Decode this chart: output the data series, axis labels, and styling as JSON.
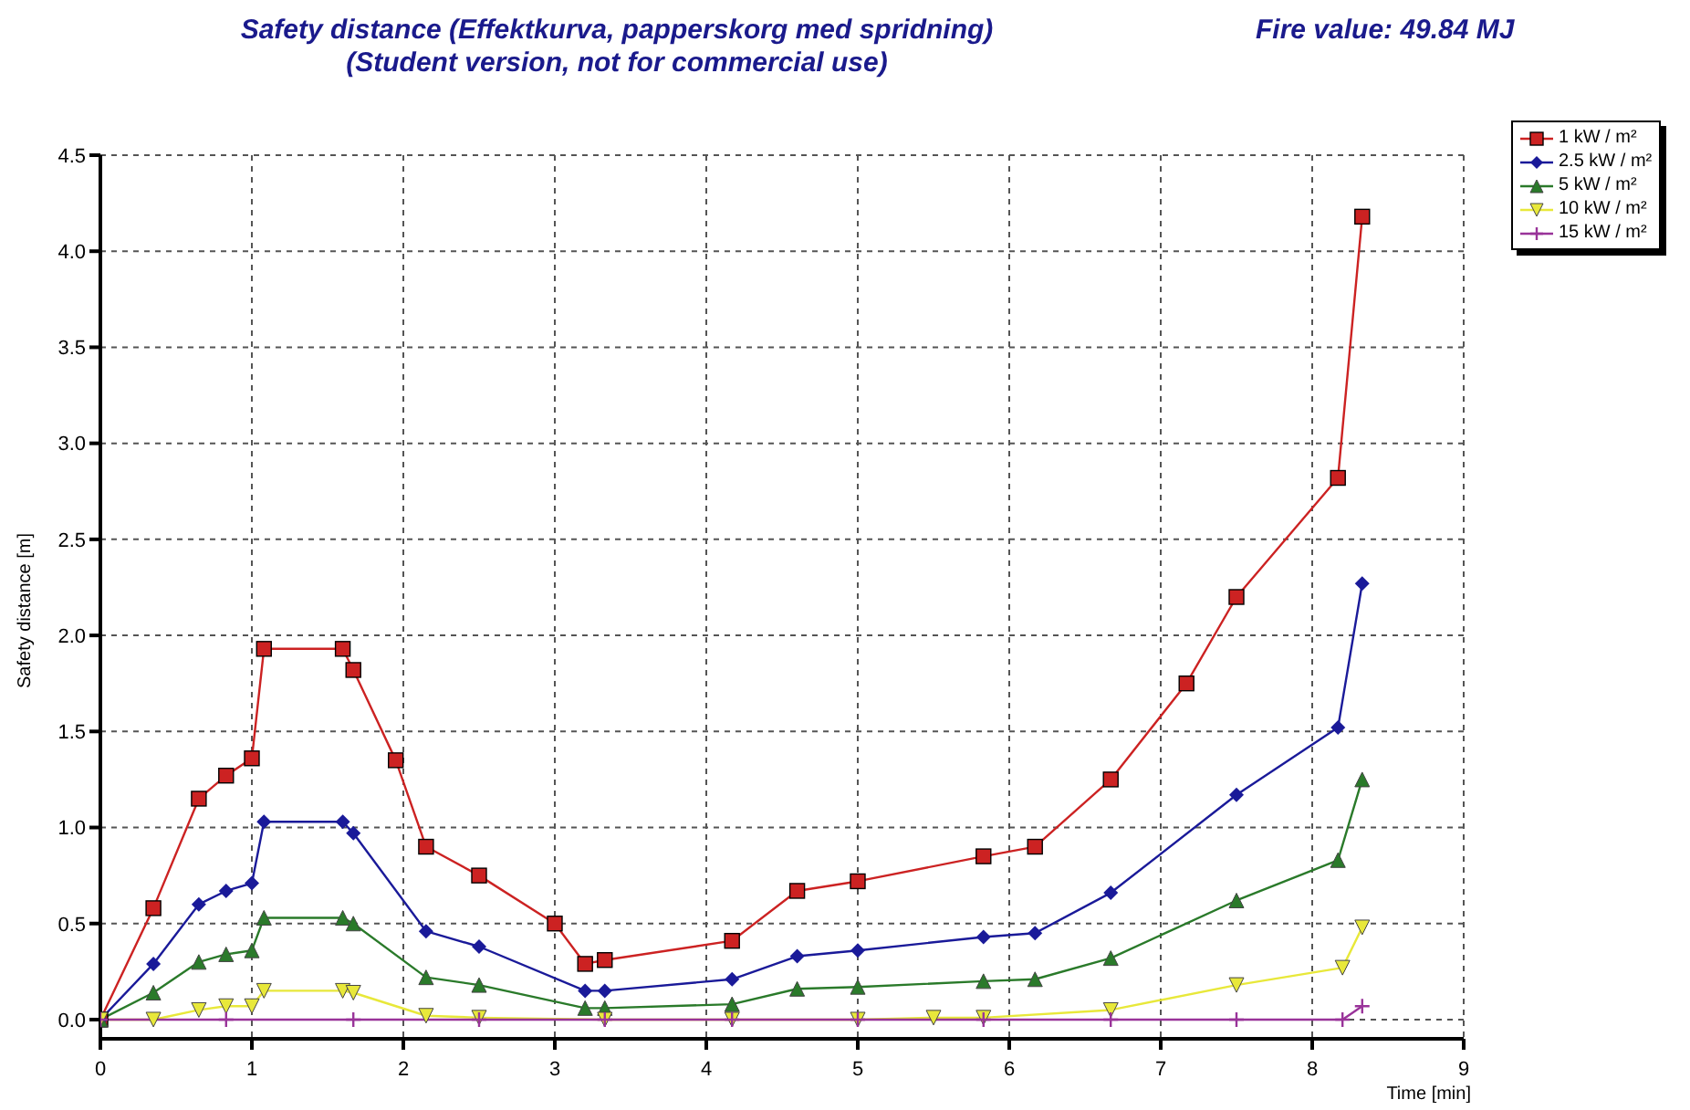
{
  "chart_data": {
    "type": "line",
    "title": "Safety distance  (Effektkurva, papperskorg med spridning)",
    "subtitle": "(Student version, not for commercial use)",
    "annotations": [
      "Fire value: 49.84 MJ"
    ],
    "xlabel": "Time [min]",
    "ylabel": "Safety distance [m]",
    "xlim": [
      0,
      9
    ],
    "xticks": [
      0,
      1,
      2,
      3,
      4,
      5,
      6,
      7,
      8,
      9
    ],
    "ylim": [
      -0.1,
      4.5
    ],
    "yticks": [
      {
        "value": 0,
        "label": "0.0"
      },
      {
        "value": 0.5,
        "label": "0.5"
      },
      {
        "value": 1,
        "label": "1.0"
      },
      {
        "value": 1.5,
        "label": "1.5"
      },
      {
        "value": 2,
        "label": "2.0"
      },
      {
        "value": 2.5,
        "label": "2.5"
      },
      {
        "value": 3,
        "label": "3.0"
      },
      {
        "value": 3.5,
        "label": "3.5"
      },
      {
        "value": 4,
        "label": "4.0"
      },
      {
        "value": 4.5,
        "label": "4.5"
      }
    ],
    "grid": true,
    "legend": "top right",
    "line_style": "solid",
    "series": [
      {
        "name": "1  kW / m²",
        "color": "#cc2222",
        "marker": "square",
        "x": [
          0,
          0.35,
          0.65,
          0.83,
          1.0,
          1.08,
          1.6,
          1.67,
          1.95,
          2.15,
          2.5,
          3.0,
          3.2,
          3.33,
          4.17,
          4.6,
          5.0,
          5.83,
          6.17,
          6.67,
          7.17,
          7.5,
          8.17,
          8.33
        ],
        "values": [
          0,
          0.58,
          1.15,
          1.27,
          1.36,
          1.93,
          1.93,
          1.82,
          1.35,
          0.9,
          0.75,
          0.5,
          0.29,
          0.31,
          0.41,
          0.67,
          0.72,
          0.85,
          0.9,
          1.25,
          1.75,
          2.2,
          2.82,
          4.18
        ]
      },
      {
        "name": "2.5  kW / m²",
        "color": "#1a1a99",
        "marker": "diamond",
        "x": [
          0,
          0.35,
          0.65,
          0.83,
          1.0,
          1.08,
          1.6,
          1.67,
          2.15,
          2.5,
          3.2,
          3.33,
          4.17,
          4.6,
          5.0,
          5.83,
          6.17,
          6.67,
          7.5,
          8.17,
          8.33
        ],
        "values": [
          0,
          0.29,
          0.6,
          0.67,
          0.71,
          1.03,
          1.03,
          0.97,
          0.46,
          0.38,
          0.15,
          0.15,
          0.21,
          0.33,
          0.36,
          0.43,
          0.45,
          0.66,
          1.17,
          1.52,
          2.27
        ]
      },
      {
        "name": "5  kW / m²",
        "color": "#2a7a2a",
        "marker": "triangle",
        "x": [
          0,
          0.35,
          0.65,
          0.83,
          1.0,
          1.08,
          1.6,
          1.67,
          2.15,
          2.5,
          3.2,
          3.33,
          4.17,
          4.6,
          5.0,
          5.83,
          6.17,
          6.67,
          7.5,
          8.17,
          8.33
        ],
        "values": [
          0,
          0.14,
          0.3,
          0.34,
          0.36,
          0.53,
          0.53,
          0.5,
          0.22,
          0.18,
          0.06,
          0.06,
          0.08,
          0.16,
          0.17,
          0.2,
          0.21,
          0.32,
          0.62,
          0.83,
          1.25
        ]
      },
      {
        "name": "10  kW / m²",
        "color": "#e8e83a",
        "marker": "triangle",
        "x": [
          0,
          0.35,
          0.65,
          0.83,
          1.0,
          1.08,
          1.6,
          1.67,
          2.15,
          2.5,
          3.33,
          4.17,
          5.0,
          5.5,
          5.83,
          6.67,
          7.5,
          8.2,
          8.33
        ],
        "values": [
          0,
          0,
          0.05,
          0.07,
          0.07,
          0.15,
          0.15,
          0.14,
          0.02,
          0.01,
          0,
          0,
          0,
          0.01,
          0.01,
          0.05,
          0.18,
          0.27,
          0.48
        ]
      },
      {
        "name": "15  kW / m²",
        "color": "#993399",
        "marker": "cross",
        "x": [
          0,
          0.83,
          1.67,
          2.5,
          3.33,
          4.17,
          5.0,
          5.83,
          6.67,
          7.5,
          8.2,
          8.33
        ],
        "values": [
          0,
          0,
          0,
          0,
          0,
          0,
          0,
          0,
          0,
          0,
          0,
          0.07
        ]
      }
    ]
  }
}
